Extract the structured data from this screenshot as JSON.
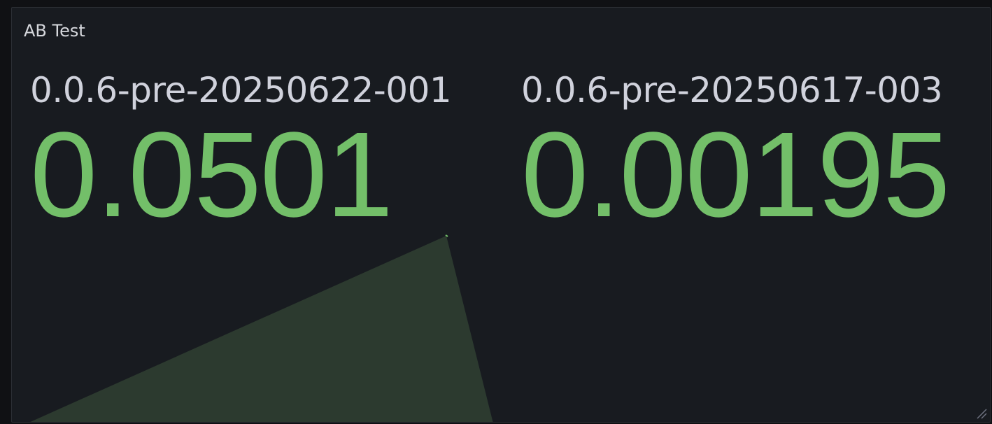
{
  "panel": {
    "title": "AB Test",
    "accent_color": "#73bf69",
    "sparkline_fill": "#2c3a2f"
  },
  "stats": [
    {
      "label": "0.0.6-pre-20250622-001",
      "value": "0.0501"
    },
    {
      "label": "0.0.6-pre-20250617-003",
      "value": "0.00195"
    }
  ],
  "icons": {
    "resize": "resize-handle-icon"
  }
}
